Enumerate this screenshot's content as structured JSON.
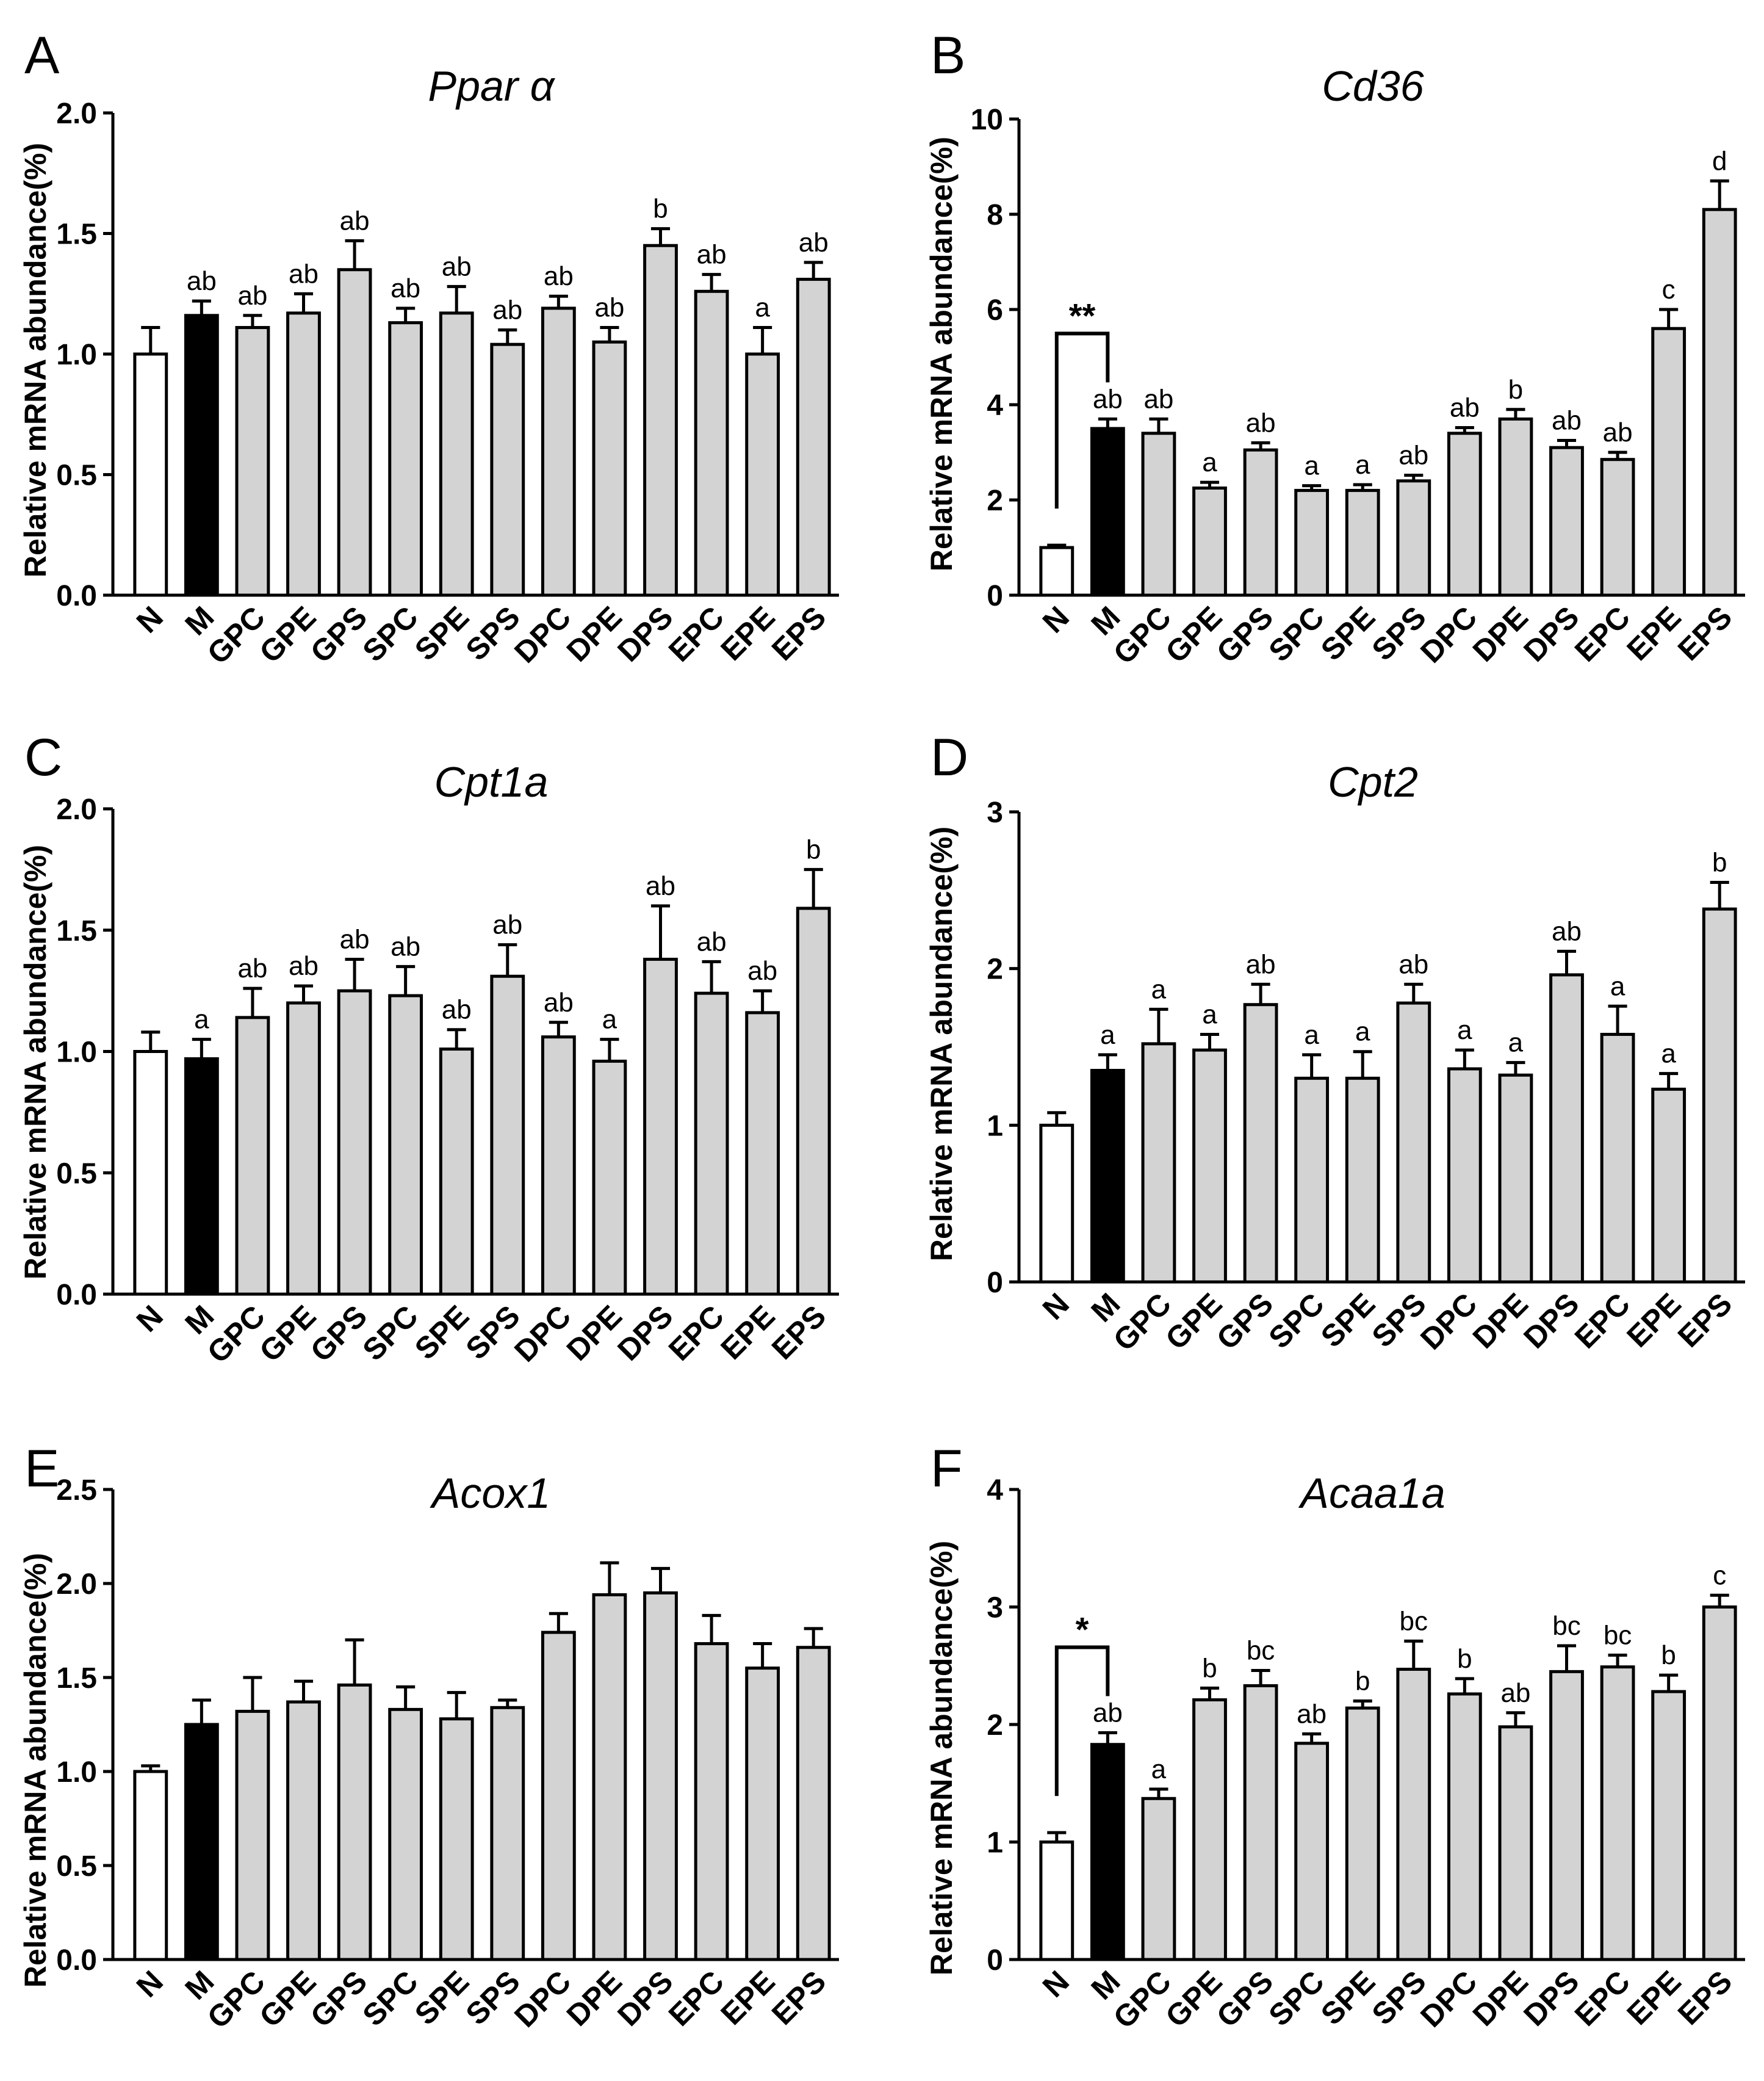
{
  "figure": {
    "categories": [
      "N",
      "M",
      "GPC",
      "GPE",
      "GPS",
      "SPC",
      "SPE",
      "SPS",
      "DPC",
      "DPE",
      "DPS",
      "EPC",
      "EPE",
      "EPS"
    ],
    "ylabel": "Relative mRNA abundance(%)",
    "colors": {
      "N": "#ffffff",
      "M": "#000000",
      "others": "#d3d3d3",
      "stroke": "#000000"
    }
  },
  "chart_data": [
    {
      "type": "bar",
      "panel": "A",
      "title": "Ppar α",
      "categories": [
        "N",
        "M",
        "GPC",
        "GPE",
        "GPS",
        "SPC",
        "SPE",
        "SPS",
        "DPC",
        "DPE",
        "DPS",
        "EPC",
        "EPE",
        "EPS"
      ],
      "values": [
        1.0,
        1.16,
        1.11,
        1.17,
        1.35,
        1.13,
        1.17,
        1.04,
        1.19,
        1.05,
        1.45,
        1.26,
        1.0,
        1.31
      ],
      "errors": [
        0.11,
        0.06,
        0.05,
        0.08,
        0.12,
        0.06,
        0.11,
        0.06,
        0.05,
        0.06,
        0.07,
        0.07,
        0.11,
        0.07
      ],
      "labels": [
        "",
        "ab",
        "ab",
        "ab",
        "ab",
        "ab",
        "ab",
        "ab",
        "ab",
        "ab",
        "b",
        "ab",
        "a",
        "ab"
      ],
      "ylim": [
        0,
        2.0
      ],
      "yticks": [
        "0.0",
        "0.5",
        "1.0",
        "1.5",
        "2.0"
      ],
      "ylabel": "Relative mRNA abundance(%)"
    },
    {
      "type": "bar",
      "panel": "B",
      "title": "Cd36",
      "categories": [
        "N",
        "M",
        "GPC",
        "GPE",
        "GPS",
        "SPC",
        "SPE",
        "SPS",
        "DPC",
        "DPE",
        "DPS",
        "EPC",
        "EPE",
        "EPS"
      ],
      "values": [
        1.0,
        3.5,
        3.4,
        2.25,
        3.05,
        2.2,
        2.2,
        2.4,
        3.4,
        3.7,
        3.1,
        2.85,
        5.6,
        8.1
      ],
      "errors": [
        0.05,
        0.2,
        0.3,
        0.12,
        0.15,
        0.1,
        0.12,
        0.12,
        0.12,
        0.2,
        0.15,
        0.15,
        0.4,
        0.6
      ],
      "labels": [
        "",
        "ab",
        "ab",
        "a",
        "ab",
        "a",
        "a",
        "ab",
        "ab",
        "b",
        "ab",
        "ab",
        "c",
        "d"
      ],
      "ylim": [
        0,
        10
      ],
      "yticks": [
        "0",
        "2",
        "4",
        "6",
        "8",
        "10"
      ],
      "significance": "**",
      "ylabel": "Relative mRNA abundance(%)"
    },
    {
      "type": "bar",
      "panel": "C",
      "title": "Cpt1a",
      "categories": [
        "N",
        "M",
        "GPC",
        "GPE",
        "GPS",
        "SPC",
        "SPE",
        "SPS",
        "DPC",
        "DPE",
        "DPS",
        "EPC",
        "EPE",
        "EPS"
      ],
      "values": [
        1.0,
        0.97,
        1.14,
        1.2,
        1.25,
        1.23,
        1.01,
        1.31,
        1.06,
        0.96,
        1.38,
        1.24,
        1.16,
        1.59
      ],
      "errors": [
        0.08,
        0.08,
        0.12,
        0.07,
        0.13,
        0.12,
        0.08,
        0.13,
        0.06,
        0.09,
        0.22,
        0.13,
        0.09,
        0.16
      ],
      "labels": [
        "",
        "a",
        "ab",
        "ab",
        "ab",
        "ab",
        "ab",
        "ab",
        "ab",
        "a",
        "ab",
        "ab",
        "ab",
        "b"
      ],
      "ylim": [
        0,
        2.0
      ],
      "yticks": [
        "0.0",
        "0.5",
        "1.0",
        "1.5",
        "2.0"
      ],
      "ylabel": "Relative mRNA abundance(%)"
    },
    {
      "type": "bar",
      "panel": "D",
      "title": "Cpt2",
      "categories": [
        "N",
        "M",
        "GPC",
        "GPE",
        "GPS",
        "SPC",
        "SPE",
        "SPS",
        "DPC",
        "DPE",
        "DPS",
        "EPC",
        "EPE",
        "EPS"
      ],
      "values": [
        1.0,
        1.35,
        1.52,
        1.48,
        1.77,
        1.3,
        1.3,
        1.78,
        1.36,
        1.32,
        1.96,
        1.58,
        1.23,
        2.38
      ],
      "errors": [
        0.08,
        0.1,
        0.22,
        0.1,
        0.13,
        0.15,
        0.17,
        0.12,
        0.12,
        0.08,
        0.15,
        0.18,
        0.1,
        0.17
      ],
      "labels": [
        "",
        "a",
        "a",
        "a",
        "ab",
        "a",
        "a",
        "ab",
        "a",
        "a",
        "ab",
        "a",
        "a",
        "b"
      ],
      "ylim": [
        0,
        3
      ],
      "yticks": [
        "0",
        "1",
        "2",
        "3"
      ],
      "ylabel": "Relative mRNA abundance(%)"
    },
    {
      "type": "bar",
      "panel": "E",
      "title": "Acox1",
      "categories": [
        "N",
        "M",
        "GPC",
        "GPE",
        "GPS",
        "SPC",
        "SPE",
        "SPS",
        "DPC",
        "DPE",
        "DPS",
        "EPC",
        "EPE",
        "EPS"
      ],
      "values": [
        1.0,
        1.25,
        1.32,
        1.37,
        1.46,
        1.33,
        1.28,
        1.34,
        1.74,
        1.94,
        1.95,
        1.68,
        1.55,
        1.66
      ],
      "errors": [
        0.03,
        0.13,
        0.18,
        0.11,
        0.24,
        0.12,
        0.14,
        0.04,
        0.1,
        0.17,
        0.13,
        0.15,
        0.13,
        0.1
      ],
      "labels": [
        "",
        "",
        "",
        "",
        "",
        "",
        "",
        "",
        "",
        "",
        "",
        "",
        "",
        ""
      ],
      "ylim": [
        0,
        2.5
      ],
      "yticks": [
        "0.0",
        "0.5",
        "1.0",
        "1.5",
        "2.0",
        "2.5"
      ],
      "ylabel": "Relative mRNA abundance(%)"
    },
    {
      "type": "bar",
      "panel": "F",
      "title": "Acaa1a",
      "categories": [
        "N",
        "M",
        "GPC",
        "GPE",
        "GPS",
        "SPC",
        "SPE",
        "SPS",
        "DPC",
        "DPE",
        "DPS",
        "EPC",
        "EPE",
        "EPS"
      ],
      "values": [
        1.0,
        1.83,
        1.37,
        2.21,
        2.33,
        1.84,
        2.14,
        2.47,
        2.26,
        1.98,
        2.45,
        2.49,
        2.28,
        3.0
      ],
      "errors": [
        0.08,
        0.1,
        0.08,
        0.1,
        0.13,
        0.08,
        0.06,
        0.24,
        0.13,
        0.12,
        0.22,
        0.1,
        0.14,
        0.1
      ],
      "labels": [
        "",
        "ab",
        "a",
        "b",
        "bc",
        "ab",
        "b",
        "bc",
        "b",
        "ab",
        "bc",
        "bc",
        "b",
        "c"
      ],
      "ylim": [
        0,
        4
      ],
      "yticks": [
        "0",
        "1",
        "2",
        "3",
        "4"
      ],
      "significance": "*",
      "ylabel": "Relative mRNA abundance(%)"
    }
  ]
}
